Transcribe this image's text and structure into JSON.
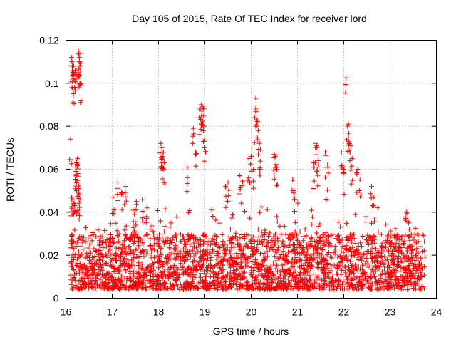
{
  "chart_data": {
    "type": "scatter",
    "title": "Day 105 of 2015, Rate Of TEC Index for receiver lord",
    "xlabel": "GPS time / hours",
    "ylabel": "ROTI / TECUs",
    "xlim": [
      16,
      24
    ],
    "ylim": [
      0,
      0.12
    ],
    "grid": true,
    "marker": "+",
    "color": "#ff0000",
    "x_ticks": [
      "16",
      "17",
      "18",
      "19",
      "20",
      "21",
      "22",
      "23",
      "24"
    ],
    "y_ticks": [
      "0",
      "0.02",
      "0.04",
      "0.06",
      "0.08",
      "0.1",
      "0.12"
    ],
    "x_range_data": [
      16.1,
      23.75
    ],
    "baseline_band": [
      0.004,
      0.03
    ],
    "series": [
      {
        "name": "ROTI",
        "x": [
          16.12,
          16.13,
          16.14,
          16.15,
          16.16,
          16.17,
          16.2,
          16.22,
          16.27,
          16.28,
          16.29,
          16.3,
          16.31,
          16.32,
          16.1,
          16.12,
          16.21,
          16.22,
          16.23,
          16.25,
          16.26,
          16.28,
          16.3,
          16.15,
          16.18,
          16.23,
          16.27,
          17.02,
          17.12,
          17.2,
          17.28,
          17.45,
          17.48,
          17.52,
          17.65,
          17.75,
          18.05,
          18.07,
          18.1,
          18.12,
          18.08,
          18.62,
          18.75,
          18.8,
          18.9,
          18.92,
          18.94,
          18.96,
          18.98,
          19.0,
          19.45,
          19.5,
          19.75,
          19.8,
          19.95,
          20.0,
          20.05,
          20.08,
          20.1,
          20.12,
          20.15,
          20.18,
          20.2,
          20.5,
          20.52,
          20.55,
          20.9,
          20.92,
          21.35,
          21.4,
          21.42,
          21.45,
          21.6,
          21.65,
          21.95,
          22.0,
          22.05,
          22.08,
          22.1,
          22.12,
          22.15,
          22.18,
          22.3,
          22.35,
          22.6,
          22.65,
          23.35,
          23.4
        ],
        "y": [
          0.112,
          0.11,
          0.108,
          0.105,
          0.102,
          0.108,
          0.106,
          0.104,
          0.115,
          0.114,
          0.112,
          0.108,
          0.1,
          0.114,
          0.074,
          0.047,
          0.061,
          0.059,
          0.063,
          0.065,
          0.058,
          0.051,
          0.046,
          0.046,
          0.044,
          0.05,
          0.048,
          0.047,
          0.054,
          0.049,
          0.052,
          0.041,
          0.039,
          0.045,
          0.046,
          0.042,
          0.072,
          0.07,
          0.068,
          0.063,
          0.066,
          0.061,
          0.079,
          0.068,
          0.088,
          0.09,
          0.087,
          0.089,
          0.08,
          0.07,
          0.052,
          0.054,
          0.057,
          0.055,
          0.065,
          0.066,
          0.06,
          0.084,
          0.093,
          0.083,
          0.078,
          0.072,
          0.069,
          0.067,
          0.066,
          0.061,
          0.055,
          0.05,
          0.063,
          0.072,
          0.07,
          0.064,
          0.068,
          0.062,
          0.068,
          0.06,
          0.1025,
          0.08,
          0.081,
          0.072,
          0.071,
          0.065,
          0.06,
          0.055,
          0.052,
          0.047,
          0.04,
          0.035
        ]
      }
    ]
  }
}
